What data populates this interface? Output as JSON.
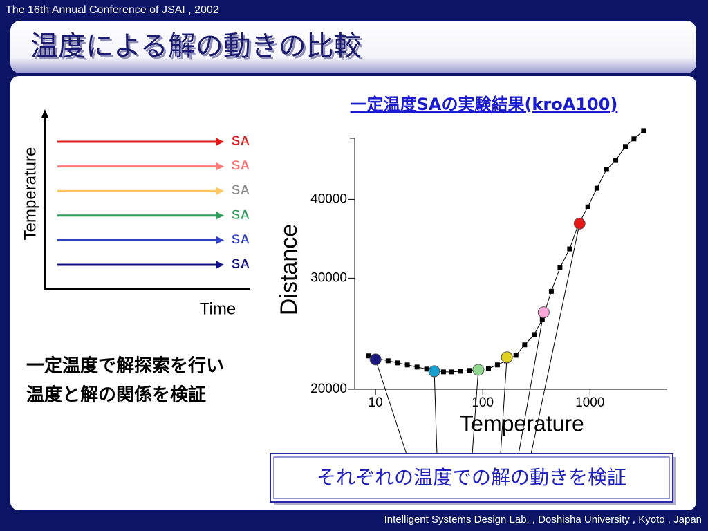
{
  "header": "The 16th Annual Conference of JSAI , 2002",
  "title": "温度による解の動きの比較",
  "footer": "Intelligent Systems Design Lab. , Doshisha University , Kyoto , Japan",
  "diagram": {
    "y_label": "Temperature",
    "x_label": "Time",
    "arrows": [
      {
        "label": "SA",
        "color": "#e01818",
        "label_color": "#e01818"
      },
      {
        "label": "SA",
        "color": "#ff7878",
        "label_color": "#ff6a6a"
      },
      {
        "label": "SA",
        "color": "#ffc864",
        "label_color": "#909090"
      },
      {
        "label": "SA",
        "color": "#2e9e5e",
        "label_color": "#2e9e5e"
      },
      {
        "label": "SA",
        "color": "#3040c8",
        "label_color": "#3040c8"
      },
      {
        "label": "SA",
        "color": "#101088",
        "label_color": "#101088"
      }
    ]
  },
  "notes": [
    "一定温度で解探索を行い",
    "温度と解の関係を検証"
  ],
  "callout": "それぞれの温度での解の動きを検証",
  "chart_data": {
    "type": "line",
    "title": "一定温度SAの実験結果(kroA100)",
    "x_label": "Temperature",
    "y_label": "Distance",
    "xlog": true,
    "ylog": true,
    "xlim": [
      6.3,
      5250
    ],
    "ylim": [
      20000,
      50000
    ],
    "xticks": [
      10,
      100,
      1000
    ],
    "yticks": [
      20000,
      30000,
      40000
    ],
    "series": [
      {
        "color": "#000000",
        "x": [
          8.6,
          10.6,
          13.1,
          16.1,
          19.8,
          24.4,
          30,
          37,
          43,
          51,
          62,
          75,
          91,
          113,
          137,
          166,
          204,
          246,
          302,
          359,
          436,
          525,
          646,
          777,
          955,
          1161,
          1429,
          1738,
          2138,
          2570,
          3162
        ],
        "values": [
          22590,
          22360,
          22190,
          22020,
          21860,
          21690,
          21530,
          21420,
          21310,
          21310,
          21360,
          21420,
          21470,
          21580,
          21860,
          22190,
          22640,
          23520,
          24420,
          25830,
          28600,
          31160,
          33380,
          36460,
          38920,
          41680,
          44640,
          46110,
          48530,
          49900,
          51420
        ]
      },
      {
        "colors": [
          "#1a1a80",
          "#1aa0d0",
          "#90d890",
          "#e0d020",
          "#f8a8d8",
          "#e81818"
        ],
        "x": [
          10,
          35.3,
          91,
          168,
          370,
          800
        ],
        "values": [
          22300,
          21360,
          21470,
          22480,
          26490,
          36620
        ]
      }
    ]
  }
}
